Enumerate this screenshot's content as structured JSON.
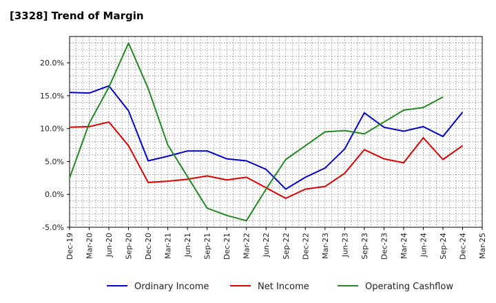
{
  "chart_data": {
    "type": "line",
    "title": "[3328]  Trend of Margin",
    "x": [
      "Dec-19",
      "Mar-20",
      "Jun-20",
      "Sep-20",
      "Dec-20",
      "Mar-21",
      "Jun-21",
      "Sep-21",
      "Dec-21",
      "Mar-22",
      "Jun-22",
      "Sep-22",
      "Dec-22",
      "Mar-23",
      "Jun-23",
      "Sep-23",
      "Dec-23",
      "Mar-24",
      "Jun-24",
      "Sep-24",
      "Dec-24",
      "Mar-25"
    ],
    "ylim": [
      -5,
      24
    ],
    "yticks": [
      -5,
      0,
      5,
      10,
      15,
      20
    ],
    "ytick_labels": [
      "-5.0%",
      "0.0%",
      "5.0%",
      "10.0%",
      "15.0%",
      "20.0%"
    ],
    "grid": true,
    "legend_position": "bottom",
    "series": [
      {
        "name": "Ordinary Income",
        "color": "#0000cc",
        "values": [
          15.5,
          15.4,
          16.5,
          12.7,
          5.1,
          5.8,
          6.6,
          6.6,
          5.4,
          5.1,
          3.8,
          0.8,
          2.6,
          4.0,
          6.9,
          12.4,
          10.2,
          9.6,
          10.3,
          8.8,
          12.5,
          null
        ]
      },
      {
        "name": "Net Income",
        "color": "#dd0000",
        "values": [
          10.2,
          10.3,
          11.0,
          7.4,
          1.8,
          2.0,
          2.3,
          2.8,
          2.2,
          2.6,
          1.0,
          -0.6,
          0.8,
          1.2,
          3.2,
          6.8,
          5.4,
          4.8,
          8.6,
          5.3,
          7.4,
          null
        ]
      },
      {
        "name": "Operating Cashflow",
        "color": "#228822",
        "values": [
          2.5,
          10.8,
          16.3,
          23.0,
          16.1,
          7.5,
          2.7,
          -2.1,
          -3.2,
          -4.0,
          0.8,
          5.3,
          7.4,
          9.5,
          9.7,
          9.2,
          11.0,
          12.8,
          13.2,
          14.8,
          null,
          null
        ]
      }
    ]
  }
}
